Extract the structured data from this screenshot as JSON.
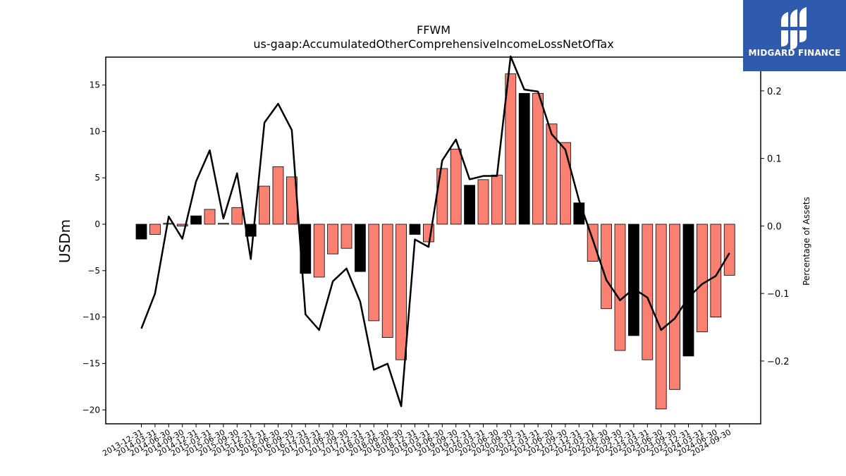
{
  "brand": {
    "name": "MIDGARD FINANCE",
    "background": "#2f5aae"
  },
  "chart_data": {
    "type": "bar",
    "title": "FFWM",
    "subtitle": "us-gaap:AccumulatedOtherComprehensiveIncomeLossNetOfTax",
    "ylabel": "USDm",
    "y2label": "Percentage of Assets",
    "ylim": [
      -21.5,
      18.0
    ],
    "y2lim": [
      -0.293,
      0.25
    ],
    "yticks": [
      15,
      10,
      5,
      0,
      -5,
      -10,
      -15,
      -20
    ],
    "y2ticks": [
      0.2,
      0.1,
      0.0,
      -0.1,
      -0.2
    ],
    "ytick_labels": [
      "15",
      "10",
      "5",
      "0",
      "−5",
      "−10",
      "−15",
      "−20"
    ],
    "y2tick_labels": [
      "0.2",
      "0.1",
      "0.0",
      "−0.1",
      "−0.2"
    ],
    "categories": [
      "2013-12-31",
      "2014-03-31",
      "2014-06-30",
      "2014-09-30",
      "2014-12-31",
      "2015-03-31",
      "2015-06-30",
      "2015-09-30",
      "2015-12-31",
      "2016-03-31",
      "2016-06-30",
      "2016-09-30",
      "2016-12-31",
      "2017-03-31",
      "2017-06-30",
      "2017-09-30",
      "2017-12-31",
      "2018-03-31",
      "2018-06-30",
      "2018-09-30",
      "2018-12-31",
      "2019-03-31",
      "2019-06-30",
      "2019-09-30",
      "2019-12-31",
      "2020-03-31",
      "2020-06-30",
      "2020-09-30",
      "2020-12-31",
      "2021-03-31",
      "2021-06-30",
      "2021-09-30",
      "2021-12-31",
      "2022-03-31",
      "2022-06-30",
      "2022-09-30",
      "2022-12-31",
      "2023-03-31",
      "2023-06-30",
      "2023-09-30",
      "2023-12-31",
      "2024-03-31",
      "2024-06-30",
      "2024-09-30"
    ],
    "series": [
      {
        "type": "bar",
        "values": [
          -1.6,
          -1.1,
          0.1,
          -0.2,
          0.9,
          1.6,
          0.1,
          1.8,
          -1.3,
          4.1,
          6.2,
          5.1,
          -5.3,
          -5.7,
          -3.2,
          -2.6,
          -5.1,
          -10.4,
          -12.2,
          -14.6,
          -1.1,
          -1.9,
          6.0,
          8.1,
          4.2,
          4.8,
          5.3,
          16.2,
          14.1,
          14.1,
          10.8,
          8.8,
          2.3,
          -4.0,
          -9.1,
          -13.6,
          -12.0,
          -14.6,
          -19.9,
          -17.8,
          -14.2,
          -11.6,
          -10.0,
          -5.5
        ],
        "highlight": [
          true,
          false,
          false,
          false,
          true,
          false,
          false,
          false,
          true,
          false,
          false,
          false,
          true,
          false,
          false,
          false,
          true,
          false,
          false,
          false,
          true,
          false,
          false,
          false,
          true,
          false,
          false,
          false,
          true,
          false,
          false,
          false,
          true,
          false,
          false,
          false,
          true,
          false,
          false,
          false,
          true,
          false,
          false,
          false
        ]
      },
      {
        "type": "line",
        "axis": "right",
        "values": [
          -0.152,
          -0.1,
          0.014,
          -0.019,
          0.066,
          0.112,
          0.011,
          0.078,
          -0.049,
          0.153,
          0.181,
          0.142,
          -0.131,
          -0.154,
          -0.082,
          -0.063,
          -0.112,
          -0.213,
          -0.204,
          -0.267,
          -0.02,
          -0.031,
          0.097,
          0.128,
          0.069,
          0.074,
          0.074,
          0.251,
          0.202,
          0.199,
          0.136,
          0.113,
          0.038,
          -0.02,
          -0.08,
          -0.11,
          -0.093,
          -0.106,
          -0.154,
          -0.137,
          -0.106,
          -0.086,
          -0.074,
          -0.04
        ]
      }
    ],
    "colors": {
      "bar": "#fa8072",
      "bar_highlight": "#000000",
      "line": "#000000"
    },
    "legend": "none",
    "grid": false
  }
}
